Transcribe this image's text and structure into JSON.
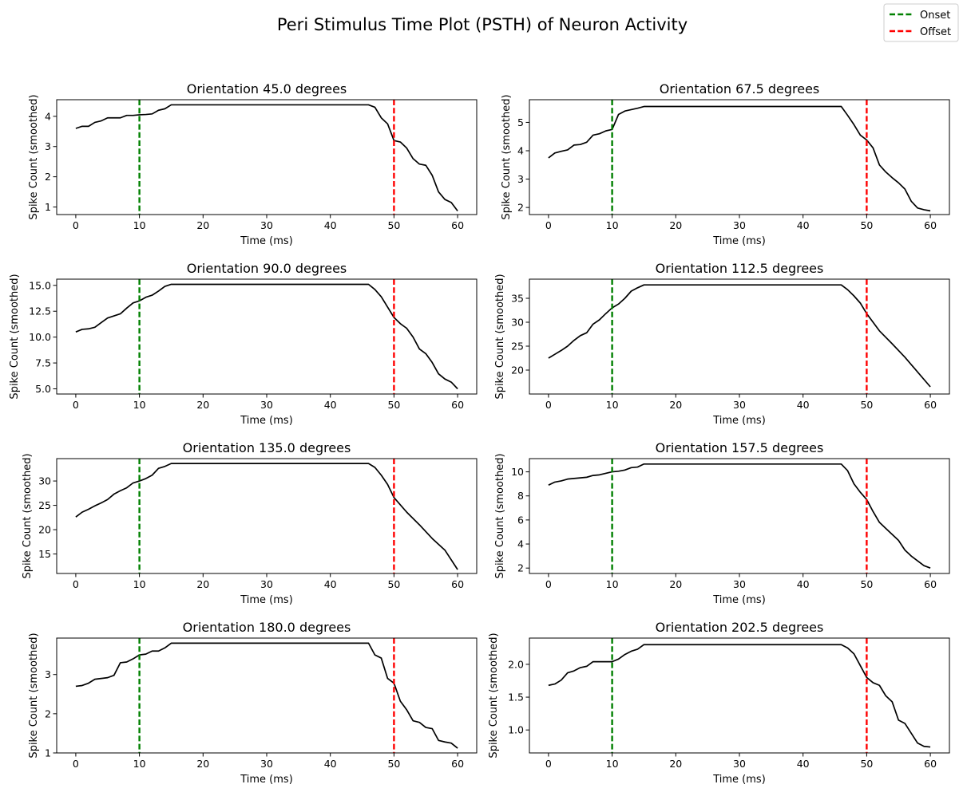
{
  "figure": {
    "title": "Peri Stimulus Time Plot (PSTH) of Neuron Activity"
  },
  "legend": {
    "placement": "top-right",
    "items": [
      {
        "label": "Onset",
        "color": "#008000",
        "style": "dashed"
      },
      {
        "label": "Offset",
        "color": "#ff0000",
        "style": "dashed"
      }
    ]
  },
  "colors": {
    "line": "#000000",
    "onset": "#008000",
    "offset": "#ff0000"
  },
  "chart_data": [
    {
      "type": "line",
      "title": "Orientation 45.0 degrees",
      "xlabel": "Time (ms)",
      "ylabel": "Spike Count (smoothed)",
      "xlim": [
        -3,
        63
      ],
      "ylim": [
        0.75,
        4.55
      ],
      "xticks": [
        0,
        10,
        20,
        30,
        40,
        50,
        60
      ],
      "yticks": [
        1,
        2,
        3,
        4
      ],
      "ytick_labels": [
        "1",
        "2",
        "3",
        "4"
      ],
      "onset": 10,
      "offset": 50,
      "x": [
        0,
        1,
        2,
        3,
        4,
        5,
        6,
        7,
        8,
        9,
        10,
        11,
        12,
        13,
        14,
        15,
        16,
        20,
        25,
        30,
        35,
        40,
        45,
        46,
        47,
        48,
        49,
        50,
        51,
        52,
        53,
        54,
        55,
        56,
        57,
        58,
        59,
        60
      ],
      "y": [
        3.6,
        3.67,
        3.67,
        3.8,
        3.85,
        3.95,
        3.95,
        3.95,
        4.03,
        4.03,
        4.05,
        4.06,
        4.08,
        4.2,
        4.25,
        4.38,
        4.38,
        4.38,
        4.38,
        4.38,
        4.38,
        4.38,
        4.38,
        4.38,
        4.3,
        3.95,
        3.75,
        3.2,
        3.15,
        2.95,
        2.6,
        2.42,
        2.38,
        2.05,
        1.5,
        1.25,
        1.15,
        0.87
      ]
    },
    {
      "type": "line",
      "title": "Orientation 67.5 degrees",
      "xlabel": "Time (ms)",
      "ylabel": "Spike Count (smoothed)",
      "xlim": [
        -3,
        63
      ],
      "ylim": [
        1.75,
        5.8
      ],
      "xticks": [
        0,
        10,
        20,
        30,
        40,
        50,
        60
      ],
      "yticks": [
        2,
        3,
        4,
        5
      ],
      "ytick_labels": [
        "2",
        "3",
        "4",
        "5"
      ],
      "onset": 10,
      "offset": 50,
      "x": [
        0,
        1,
        2,
        3,
        4,
        5,
        6,
        7,
        8,
        9,
        10,
        11,
        12,
        13,
        14,
        15,
        16,
        20,
        25,
        30,
        35,
        40,
        45,
        46,
        47,
        48,
        49,
        50,
        51,
        52,
        53,
        54,
        55,
        56,
        57,
        58,
        59,
        60
      ],
      "y": [
        3.75,
        3.92,
        3.98,
        4.03,
        4.2,
        4.22,
        4.3,
        4.55,
        4.6,
        4.7,
        4.75,
        5.28,
        5.4,
        5.45,
        5.5,
        5.56,
        5.56,
        5.56,
        5.56,
        5.56,
        5.56,
        5.56,
        5.56,
        5.56,
        5.25,
        4.92,
        4.55,
        4.38,
        4.1,
        3.5,
        3.25,
        3.05,
        2.87,
        2.65,
        2.22,
        1.98,
        1.92,
        1.88
      ]
    },
    {
      "type": "line",
      "title": "Orientation 90.0 degrees",
      "xlabel": "Time (ms)",
      "ylabel": "Spike Count (smoothed)",
      "xlim": [
        -3,
        63
      ],
      "ylim": [
        4.5,
        15.6
      ],
      "xticks": [
        0,
        10,
        20,
        30,
        40,
        50,
        60
      ],
      "yticks": [
        5.0,
        7.5,
        10.0,
        12.5,
        15.0
      ],
      "ytick_labels": [
        "5.0",
        "7.5",
        "10.0",
        "12.5",
        "15.0"
      ],
      "onset": 10,
      "offset": 50,
      "x": [
        0,
        1,
        2,
        3,
        4,
        5,
        6,
        7,
        8,
        9,
        10,
        11,
        12,
        13,
        14,
        15,
        16,
        20,
        25,
        30,
        35,
        40,
        45,
        46,
        47,
        48,
        49,
        50,
        51,
        52,
        53,
        54,
        55,
        56,
        57,
        58,
        59,
        60
      ],
      "y": [
        10.5,
        10.75,
        10.8,
        10.95,
        11.4,
        11.85,
        12.05,
        12.25,
        12.8,
        13.3,
        13.5,
        13.85,
        14.05,
        14.45,
        14.9,
        15.1,
        15.1,
        15.1,
        15.1,
        15.1,
        15.1,
        15.1,
        15.1,
        15.1,
        14.6,
        13.9,
        12.9,
        11.9,
        11.3,
        10.85,
        10.0,
        8.85,
        8.4,
        7.55,
        6.45,
        5.95,
        5.65,
        5.0
      ]
    },
    {
      "type": "line",
      "title": "Orientation 112.5 degrees",
      "xlabel": "Time (ms)",
      "ylabel": "Spike Count (smoothed)",
      "xlim": [
        -3,
        63
      ],
      "ylim": [
        15.0,
        39.0
      ],
      "xticks": [
        0,
        10,
        20,
        30,
        40,
        50,
        60
      ],
      "yticks": [
        20,
        25,
        30,
        35
      ],
      "ytick_labels": [
        "20",
        "25",
        "30",
        "35"
      ],
      "onset": 10,
      "offset": 50,
      "x": [
        0,
        1,
        2,
        3,
        4,
        5,
        6,
        7,
        8,
        9,
        10,
        11,
        12,
        13,
        14,
        15,
        16,
        20,
        25,
        30,
        35,
        40,
        45,
        46,
        47,
        48,
        49,
        50,
        52,
        54,
        56,
        58,
        60
      ],
      "y": [
        22.5,
        23.3,
        24.1,
        25.0,
        26.2,
        27.2,
        27.8,
        29.6,
        30.5,
        31.8,
        33.0,
        33.8,
        35.0,
        36.5,
        37.2,
        37.8,
        37.8,
        37.8,
        37.8,
        37.8,
        37.8,
        37.8,
        37.8,
        37.8,
        36.8,
        35.5,
        34.0,
        31.8,
        28.2,
        25.5,
        22.7,
        19.6,
        16.5
      ]
    },
    {
      "type": "line",
      "title": "Orientation 135.0 degrees",
      "xlabel": "Time (ms)",
      "ylabel": "Spike Count (smoothed)",
      "xlim": [
        -3,
        63
      ],
      "ylim": [
        11.0,
        34.6
      ],
      "xticks": [
        0,
        10,
        20,
        30,
        40,
        50,
        60
      ],
      "yticks": [
        15,
        20,
        25,
        30
      ],
      "ytick_labels": [
        "15",
        "20",
        "25",
        "30"
      ],
      "onset": 10,
      "offset": 50,
      "x": [
        0,
        1,
        2,
        3,
        4,
        5,
        6,
        7,
        8,
        9,
        10,
        11,
        12,
        13,
        14,
        15,
        16,
        20,
        25,
        30,
        35,
        40,
        45,
        46,
        47,
        48,
        49,
        50,
        52,
        54,
        56,
        58,
        60
      ],
      "y": [
        22.6,
        23.6,
        24.2,
        24.9,
        25.5,
        26.2,
        27.3,
        28.0,
        28.6,
        29.6,
        30.0,
        30.5,
        31.2,
        32.6,
        33.0,
        33.6,
        33.6,
        33.6,
        33.6,
        33.6,
        33.6,
        33.6,
        33.6,
        33.6,
        32.8,
        31.2,
        29.3,
        26.6,
        23.6,
        21.0,
        18.2,
        15.8,
        11.8
      ]
    },
    {
      "type": "line",
      "title": "Orientation 157.5 degrees",
      "xlabel": "Time (ms)",
      "ylabel": "Spike Count (smoothed)",
      "xlim": [
        -3,
        63
      ],
      "ylim": [
        1.55,
        11.1
      ],
      "xticks": [
        0,
        10,
        20,
        30,
        40,
        50,
        60
      ],
      "yticks": [
        2,
        4,
        6,
        8,
        10
      ],
      "ytick_labels": [
        "2",
        "4",
        "6",
        "8",
        "10"
      ],
      "onset": 10,
      "offset": 50,
      "x": [
        0,
        1,
        2,
        3,
        4,
        5,
        6,
        7,
        8,
        9,
        10,
        11,
        12,
        13,
        14,
        15,
        16,
        20,
        25,
        30,
        35,
        40,
        45,
        46,
        47,
        48,
        49,
        50,
        51,
        52,
        53,
        54,
        55,
        56,
        57,
        58,
        59,
        60
      ],
      "y": [
        8.9,
        9.15,
        9.25,
        9.4,
        9.45,
        9.5,
        9.55,
        9.7,
        9.75,
        9.88,
        10.0,
        10.05,
        10.15,
        10.35,
        10.4,
        10.65,
        10.65,
        10.65,
        10.65,
        10.65,
        10.65,
        10.65,
        10.65,
        10.65,
        10.1,
        9.0,
        8.3,
        7.7,
        6.7,
        5.8,
        5.3,
        4.8,
        4.3,
        3.5,
        3.0,
        2.6,
        2.2,
        2.0
      ]
    },
    {
      "type": "line",
      "title": "Orientation 180.0 degrees",
      "xlabel": "Time (ms)",
      "ylabel": "Spike Count (smoothed)",
      "xlim": [
        -3,
        63
      ],
      "ylim": [
        1.0,
        3.93
      ],
      "xticks": [
        0,
        10,
        20,
        30,
        40,
        50,
        60
      ],
      "yticks": [
        1,
        2,
        3
      ],
      "ytick_labels": [
        "1",
        "2",
        "3"
      ],
      "onset": 10,
      "offset": 50,
      "x": [
        0,
        1,
        2,
        3,
        4,
        5,
        6,
        7,
        8,
        9,
        10,
        11,
        12,
        13,
        14,
        15,
        16,
        20,
        25,
        30,
        35,
        40,
        45,
        46,
        47,
        48,
        49,
        50,
        51,
        52,
        53,
        54,
        55,
        56,
        57,
        58,
        59,
        60
      ],
      "y": [
        2.7,
        2.72,
        2.78,
        2.88,
        2.9,
        2.92,
        2.98,
        3.3,
        3.32,
        3.4,
        3.5,
        3.52,
        3.6,
        3.6,
        3.68,
        3.8,
        3.8,
        3.8,
        3.8,
        3.8,
        3.8,
        3.8,
        3.8,
        3.8,
        3.5,
        3.42,
        2.9,
        2.78,
        2.32,
        2.1,
        1.82,
        1.78,
        1.65,
        1.62,
        1.32,
        1.28,
        1.25,
        1.12
      ]
    },
    {
      "type": "line",
      "title": "Orientation 202.5 degrees",
      "xlabel": "Time (ms)",
      "ylabel": "Spike Count (smoothed)",
      "xlim": [
        -3,
        63
      ],
      "ylim": [
        0.65,
        2.4
      ],
      "xticks": [
        0,
        10,
        20,
        30,
        40,
        50,
        60
      ],
      "yticks": [
        1.0,
        1.5,
        2.0
      ],
      "ytick_labels": [
        "1.0",
        "1.5",
        "2.0"
      ],
      "onset": 10,
      "offset": 50,
      "x": [
        0,
        1,
        2,
        3,
        4,
        5,
        6,
        7,
        8,
        9,
        10,
        11,
        12,
        13,
        14,
        15,
        16,
        20,
        25,
        30,
        35,
        40,
        45,
        46,
        47,
        48,
        49,
        50,
        51,
        52,
        53,
        54,
        55,
        56,
        57,
        58,
        59,
        60
      ],
      "y": [
        1.68,
        1.7,
        1.76,
        1.87,
        1.9,
        1.95,
        1.97,
        2.04,
        2.04,
        2.04,
        2.04,
        2.08,
        2.15,
        2.2,
        2.23,
        2.3,
        2.3,
        2.3,
        2.3,
        2.3,
        2.3,
        2.3,
        2.3,
        2.3,
        2.25,
        2.16,
        1.98,
        1.8,
        1.72,
        1.68,
        1.52,
        1.43,
        1.15,
        1.1,
        0.95,
        0.8,
        0.75,
        0.74
      ]
    }
  ]
}
